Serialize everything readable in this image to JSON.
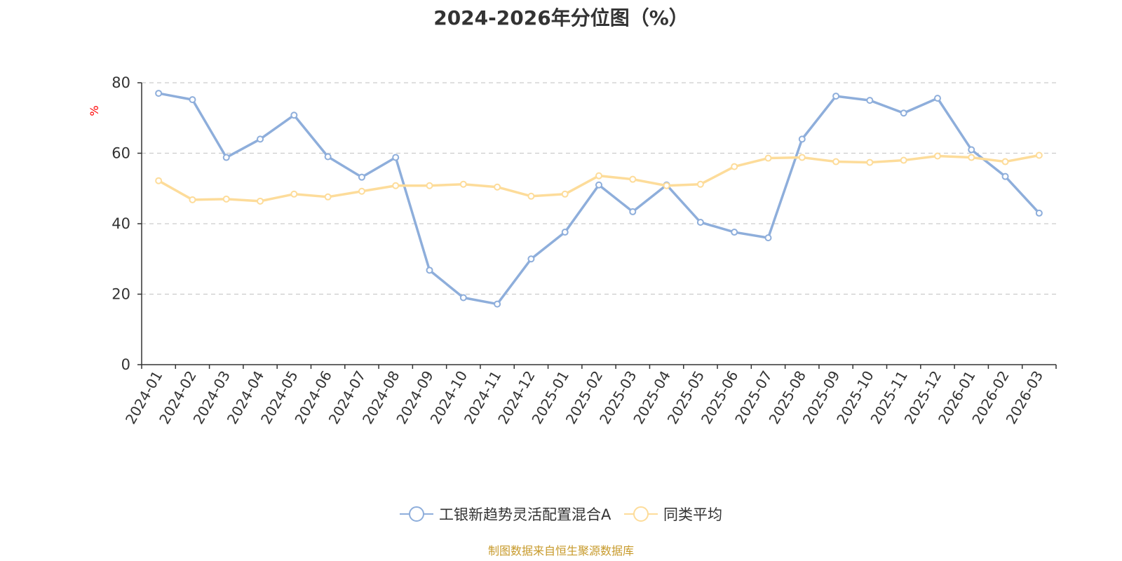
{
  "chart_data": {
    "type": "line",
    "title": "2024-2026年分位图（%）",
    "ylabel": "%",
    "ylim": [
      0,
      80
    ],
    "yticks": [
      0,
      20,
      40,
      60,
      80
    ],
    "grid": true,
    "legend_position": "bottom",
    "categories": [
      "2024-01",
      "2024-02",
      "2024-03",
      "2024-04",
      "2024-05",
      "2024-06",
      "2024-07",
      "2024-08",
      "2024-09",
      "2024-10",
      "2024-11",
      "2024-12",
      "2025-01",
      "2025-02",
      "2025-03",
      "2025-04",
      "2025-05",
      "2025-06",
      "2025-07",
      "2025-08",
      "2025-09",
      "2025-10",
      "2025-11",
      "2025-12",
      "2026-01",
      "2026-02",
      "2026-03"
    ],
    "series": [
      {
        "name": "工银新趋势灵活配置混合A",
        "color": "#8eaedb",
        "values": [
          77,
          75.2,
          58.8,
          64,
          70.8,
          59,
          53.2,
          58.8,
          26.8,
          19,
          17.2,
          30,
          37.6,
          51,
          43.4,
          51,
          40.4,
          37.6,
          36,
          64,
          76.2,
          75,
          71.4,
          75.6,
          61,
          53.4,
          43
        ]
      },
      {
        "name": "同类平均",
        "color": "#fddc9a",
        "values": [
          52.2,
          46.8,
          47,
          46.4,
          48.4,
          47.6,
          49.2,
          50.8,
          50.8,
          51.2,
          50.4,
          47.8,
          48.4,
          53.6,
          52.6,
          50.8,
          51.2,
          56.2,
          58.6,
          58.8,
          57.6,
          57.4,
          58,
          59.2,
          58.8,
          57.6,
          59.4
        ]
      }
    ]
  },
  "source_text": "制图数据来自恒生聚源数据库",
  "colors": {
    "axis": "#333333",
    "grid": "#cccccc",
    "ylabel": "#ff0000",
    "source": "#c79a2b",
    "title": "#333333"
  }
}
